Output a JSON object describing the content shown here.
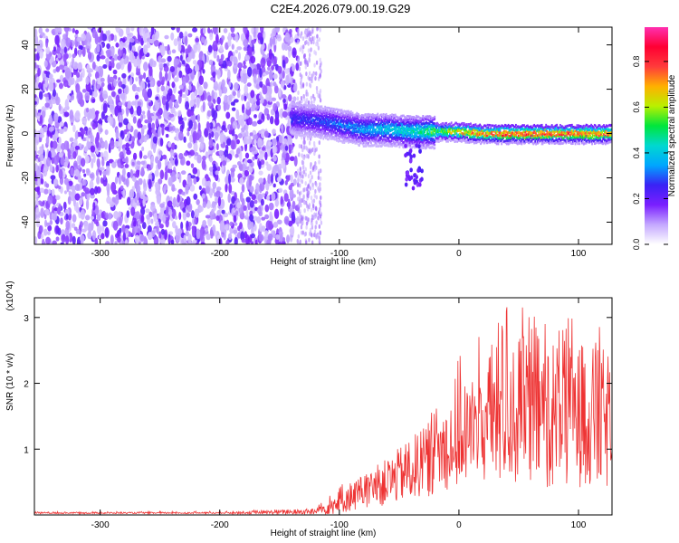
{
  "figure": {
    "title": "C2E4.2026.079.00.19.G29"
  },
  "colorbar": {
    "label": "Normalized spectral amplitude",
    "ticks": [
      0.0,
      0.2,
      0.4,
      0.6,
      0.8
    ],
    "tick_labels": [
      "0.0",
      "0.2",
      "0.4",
      "0.6",
      "0.8"
    ],
    "range": [
      0.0,
      0.95
    ],
    "colors": [
      "#ffffff",
      "#c4a8ff",
      "#7a1fff",
      "#3a22f5",
      "#00a6ff",
      "#00d8d0",
      "#00e63c",
      "#b9f000",
      "#ffb000",
      "#ff3b3b",
      "#ff0033",
      "#ff2fb0"
    ]
  },
  "chart_data": [
    {
      "type": "heatmap",
      "title": "C2E4.2026.079.00.19.G29",
      "xlabel": "Height of straight line (km)",
      "ylabel": "Frequency (Hz)",
      "xlim": [
        -355,
        128
      ],
      "ylim": [
        -50,
        48
      ],
      "x_ticks": [
        -300,
        -200,
        -100,
        0,
        100
      ],
      "x_tick_labels": [
        "-300",
        "-200",
        "-100",
        "0",
        "100"
      ],
      "y_ticks": [
        -40,
        -20,
        0,
        20,
        40
      ],
      "y_tick_labels": [
        "-40",
        "-20",
        "0",
        "20",
        "40"
      ],
      "noise_region_x": [
        -355,
        -135
      ],
      "signal_ridge": [
        {
          "x": -140,
          "y": 7,
          "amp": 0.3
        },
        {
          "x": -120,
          "y": 6,
          "amp": 0.3
        },
        {
          "x": -100,
          "y": 4,
          "amp": 0.35
        },
        {
          "x": -80,
          "y": 2,
          "amp": 0.4
        },
        {
          "x": -60,
          "y": 2,
          "amp": 0.45
        },
        {
          "x": -40,
          "y": 1,
          "amp": 0.5
        },
        {
          "x": -20,
          "y": 1,
          "amp": 0.6
        },
        {
          "x": 0,
          "y": 1,
          "amp": 0.75
        },
        {
          "x": 20,
          "y": 0,
          "amp": 0.85
        },
        {
          "x": 40,
          "y": 0,
          "amp": 0.9
        },
        {
          "x": 60,
          "y": 0,
          "amp": 0.9
        },
        {
          "x": 80,
          "y": 0,
          "amp": 0.88
        },
        {
          "x": 100,
          "y": 0,
          "amp": 0.88
        },
        {
          "x": 120,
          "y": 0,
          "amp": 0.85
        }
      ],
      "colorbar_label": "Normalized spectral amplitude",
      "clim": [
        0.0,
        0.95
      ]
    },
    {
      "type": "line",
      "title": "",
      "xlabel": "Height of straight line (km)",
      "ylabel": "SNR (10 * v/v)",
      "y_multiplier": "(x10^4)",
      "xlim": [
        -355,
        128
      ],
      "ylim": [
        0,
        3.3
      ],
      "x_ticks": [
        -300,
        -200,
        -100,
        0,
        100
      ],
      "x_tick_labels": [
        "-300",
        "-200",
        "-100",
        "0",
        "100"
      ],
      "y_ticks": [
        1,
        2,
        3
      ],
      "y_tick_labels": [
        "1",
        "2",
        "3"
      ],
      "series": [
        {
          "name": "SNR",
          "color": "#ee3333",
          "x": [
            -355,
            -300,
            -200,
            -120,
            -105,
            -95,
            -80,
            -60,
            -40,
            -20,
            0,
            20,
            40,
            60,
            80,
            100,
            120,
            128
          ],
          "y_mean": [
            0.03,
            0.03,
            0.03,
            0.05,
            0.15,
            0.25,
            0.35,
            0.5,
            0.7,
            0.9,
            1.2,
            1.4,
            1.55,
            1.6,
            1.55,
            1.5,
            1.45,
            1.4
          ],
          "y_spread": [
            0.01,
            0.01,
            0.01,
            0.04,
            0.12,
            0.18,
            0.22,
            0.3,
            0.4,
            0.5,
            0.65,
            0.8,
            0.95,
            1.0,
            0.95,
            0.9,
            0.9,
            0.9
          ],
          "y_peak": [
            0.05,
            0.05,
            0.06,
            0.1,
            0.4,
            0.5,
            0.6,
            0.9,
            1.2,
            1.7,
            2.4,
            2.8,
            3.25,
            3.1,
            3.2,
            3.0,
            3.0,
            2.5
          ]
        }
      ]
    }
  ]
}
